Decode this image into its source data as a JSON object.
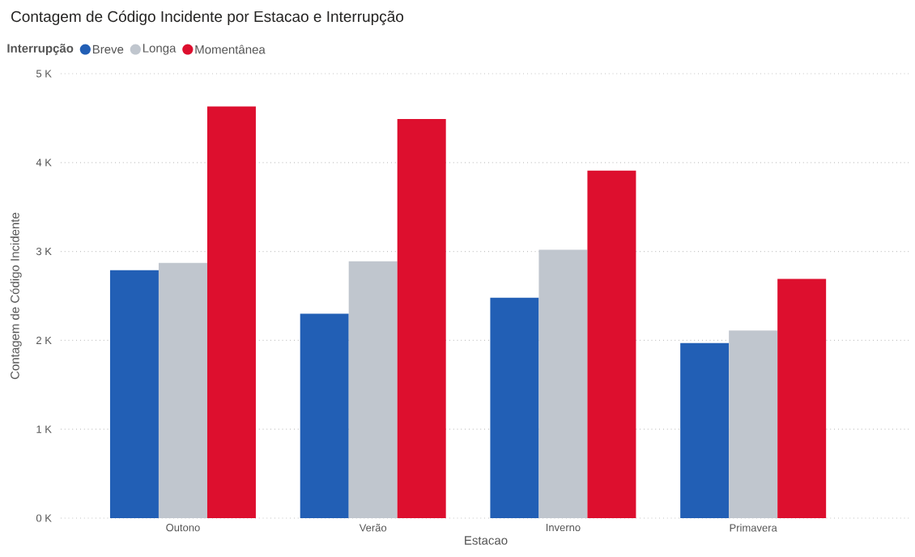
{
  "chart_data": {
    "type": "bar",
    "title": "Contagem de Código Incidente por Estacao e Interrupção",
    "xlabel": "Estacao",
    "ylabel": "Contagem de Código Incidente",
    "legend_title": "Interrupção",
    "legend": "top left",
    "grid": "y",
    "categories": [
      "Outono",
      "Verão",
      "Inverno",
      "Primavera"
    ],
    "series": [
      {
        "name": "Breve",
        "color": "#225fb5",
        "values": [
          2790,
          2300,
          2480,
          1970
        ]
      },
      {
        "name": "Longa",
        "color": "#c0c6ce",
        "values": [
          2870,
          2890,
          3020,
          2110
        ]
      },
      {
        "name": "Momentânea",
        "color": "#dd0f2e",
        "values": [
          4630,
          4490,
          3910,
          2690
        ]
      }
    ],
    "ylim": [
      0,
      5000
    ],
    "yticks": [
      {
        "value": 0,
        "label": "0 K"
      },
      {
        "value": 1000,
        "label": "1 K"
      },
      {
        "value": 2000,
        "label": "2 K"
      },
      {
        "value": 3000,
        "label": "3 K"
      },
      {
        "value": 4000,
        "label": "4 K"
      },
      {
        "value": 5000,
        "label": "5 K"
      }
    ]
  }
}
